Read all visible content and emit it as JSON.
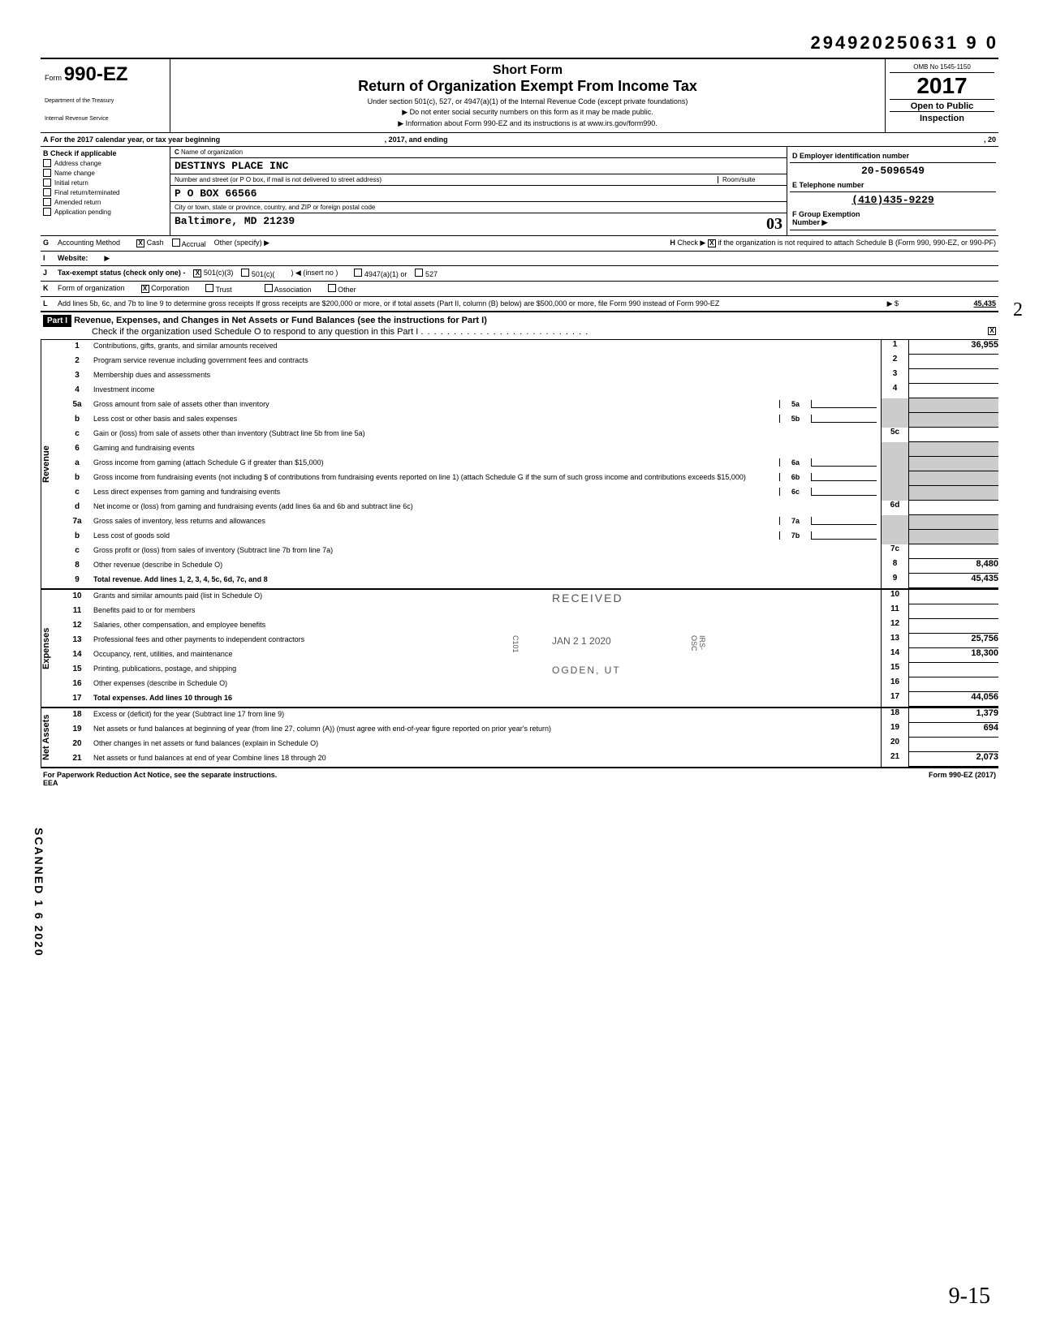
{
  "doc_number": "294920250631 9  0",
  "omb": "OMB No 1545-1150",
  "year": "2017",
  "form": {
    "number": "990-EZ",
    "label": "Form",
    "dept": "Department of the Treasury",
    "irs": "Internal Revenue Service"
  },
  "titles": {
    "short": "Short Form",
    "main": "Return of Organization Exempt From Income Tax",
    "sub1": "Under section 501(c), 527, or 4947(a)(1) of the Internal Revenue Code (except private foundations)",
    "sub2": "▶ Do not enter social security numbers on this form as it may be made public.",
    "sub3": "▶ Information about Form 990-EZ and its instructions is at www.irs.gov/form990.",
    "open_public": "Open to Public",
    "inspection": "Inspection"
  },
  "line_a": "For the 2017 calendar year, or tax year beginning",
  "line_a_mid": ", 2017, and ending",
  "line_a_end": ", 20",
  "section_b": {
    "header": "Check if applicable",
    "items": [
      "Address change",
      "Name change",
      "Initial return",
      "Final return/terminated",
      "Amended return",
      "Application pending"
    ]
  },
  "section_c": {
    "label": "Name of organization",
    "name": "DESTINYS PLACE INC",
    "addr_label": "Number and street (or P O box, if mail is not delivered to street address)",
    "room_label": "Room/suite",
    "addr": "P O BOX 66566",
    "city_label": "City or town, state or province, country, and ZIP or foreign postal code",
    "city": "Baltimore, MD 21239"
  },
  "section_d": {
    "label": "Employer identification number",
    "value": "20-5096549"
  },
  "section_e": {
    "label": "Telephone number",
    "value": "(410)435-9229"
  },
  "section_f": {
    "label": "Group Exemption",
    "label2": "Number ▶"
  },
  "section_g": "Accounting Method",
  "g_options": [
    "Cash",
    "Accrual",
    "Other (specify) ▶"
  ],
  "section_h": "Check ▶",
  "h_text": "if the organization is not required to attach Schedule B (Form 990, 990-EZ, or 990-PF)",
  "section_i": "Website:",
  "section_j": "Tax-exempt status (check only one) -",
  "j_options": [
    "501(c)(3)",
    "501(c)(",
    ") ◀ (insert no )",
    "4947(a)(1) or",
    "527"
  ],
  "section_k": "Form of organization",
  "k_options": [
    "Corporation",
    "Trust",
    "Association",
    "Other"
  ],
  "section_l": "Add lines 5b, 6c, and 7b to line 9 to determine gross receipts  If gross receipts are $200,000 or more, or if total assets (Part II, column (B) below) are $500,000 or more, file Form 990 instead of Form 990-EZ",
  "l_value": "45,435",
  "part1": {
    "label": "Part I",
    "title": "Revenue, Expenses, and Changes in Net Assets or Fund Balances (see the instructions for Part I)",
    "check_text": "Check if the organization used Schedule O to respond to any question in this Part I"
  },
  "sections": {
    "revenue": "Revenue",
    "expenses": "Expenses",
    "netassets": "Net Assets"
  },
  "lines": [
    {
      "num": "1",
      "desc": "Contributions, gifts, grants, and similar amounts received",
      "box": "1",
      "val": "36,955"
    },
    {
      "num": "2",
      "desc": "Program service revenue including government fees and contracts",
      "box": "2",
      "val": ""
    },
    {
      "num": "3",
      "desc": "Membership dues and assessments",
      "box": "3",
      "val": ""
    },
    {
      "num": "4",
      "desc": "Investment income",
      "box": "4",
      "val": ""
    },
    {
      "num": "5a",
      "desc": "Gross amount from sale of assets other than inventory",
      "inner_box": "5a",
      "val": ""
    },
    {
      "num": "b",
      "desc": "Less  cost or other basis and sales expenses",
      "inner_box": "5b",
      "val": ""
    },
    {
      "num": "c",
      "desc": "Gain or (loss) from sale of assets other than inventory (Subtract line 5b from line 5a)",
      "box": "5c",
      "val": ""
    },
    {
      "num": "6",
      "desc": "Gaming and fundraising events",
      "val": ""
    },
    {
      "num": "a",
      "desc": "Gross income from gaming (attach Schedule G if greater than $15,000)",
      "inner_box": "6a",
      "val": ""
    },
    {
      "num": "b",
      "desc": "Gross income from fundraising events (not including     $                                                        of contributions from fundraising events reported on line 1) (attach Schedule G if the sum of such gross income and contributions exceeds $15,000)",
      "inner_box": "6b",
      "val": ""
    },
    {
      "num": "c",
      "desc": "Less  direct expenses from gaming and fundraising events",
      "inner_box": "6c",
      "val": ""
    },
    {
      "num": "d",
      "desc": "Net income or (loss) from gaming and fundraising events (add lines 6a and 6b and subtract line 6c)",
      "box": "6d",
      "val": ""
    },
    {
      "num": "7a",
      "desc": "Gross sales of inventory, less returns and allowances",
      "inner_box": "7a",
      "val": ""
    },
    {
      "num": "b",
      "desc": "Less  cost of goods sold",
      "inner_box": "7b",
      "val": ""
    },
    {
      "num": "c",
      "desc": "Gross profit or (loss) from sales of inventory (Subtract line 7b from line 7a)",
      "box": "7c",
      "val": ""
    },
    {
      "num": "8",
      "desc": "Other revenue (describe in Schedule O)",
      "box": "8",
      "val": "8,480"
    },
    {
      "num": "9",
      "desc": "Total revenue.  Add lines 1, 2, 3, 4, 5c, 6d, 7c, and 8",
      "box": "9",
      "val": "45,435",
      "bold": true
    },
    {
      "num": "10",
      "desc": "Grants and similar amounts paid (list in Schedule O)",
      "box": "10",
      "val": ""
    },
    {
      "num": "11",
      "desc": "Benefits paid to or for members",
      "box": "11",
      "val": ""
    },
    {
      "num": "12",
      "desc": "Salaries, other compensation, and employee benefits",
      "box": "12",
      "val": ""
    },
    {
      "num": "13",
      "desc": "Professional fees and other payments to independent contractors",
      "box": "13",
      "val": "25,756"
    },
    {
      "num": "14",
      "desc": "Occupancy, rent, utilities, and maintenance",
      "box": "14",
      "val": "18,300"
    },
    {
      "num": "15",
      "desc": "Printing, publications, postage, and shipping",
      "box": "15",
      "val": ""
    },
    {
      "num": "16",
      "desc": "Other expenses (describe in Schedule O)",
      "box": "16",
      "val": ""
    },
    {
      "num": "17",
      "desc": "Total expenses.  Add lines 10 through 16",
      "box": "17",
      "val": "44,056",
      "bold": true
    },
    {
      "num": "18",
      "desc": "Excess or (deficit) for the year (Subtract line 17 from line 9)",
      "box": "18",
      "val": "1,379"
    },
    {
      "num": "19",
      "desc": "Net assets or fund balances at beginning of year (from line 27, column (A)) (must agree with end-of-year figure reported on prior year's return)",
      "box": "19",
      "val": "694"
    },
    {
      "num": "20",
      "desc": "Other changes in net assets or fund balances (explain in Schedule O)",
      "box": "20",
      "val": ""
    },
    {
      "num": "21",
      "desc": "Net assets or fund balances at end of year  Combine lines 18 through 20",
      "box": "21",
      "val": "2,073"
    }
  ],
  "footer": {
    "left": "For Paperwork Reduction Act Notice, see the separate instructions.",
    "eea": "EEA",
    "right": "Form 990-EZ (2017)"
  },
  "stamps": {
    "received": "RECEIVED",
    "date": "JAN 2 1 2020",
    "ogden": "OGDEN, UT",
    "scanned": "SCANNED",
    "date_side": "1 6 2020"
  },
  "hand": "9-15",
  "hand_03": "03",
  "hand_2": "2",
  "b_label": "B",
  "c_label": "C",
  "d_label": "D",
  "e_label": "E",
  "f_label": "F",
  "g_label": "G",
  "i_label": "I",
  "j_label": "J",
  "k_label": "K",
  "l_label": "L",
  "h_label": "H",
  "irs_osc": "IRS-OSC",
  "c101": "C101"
}
